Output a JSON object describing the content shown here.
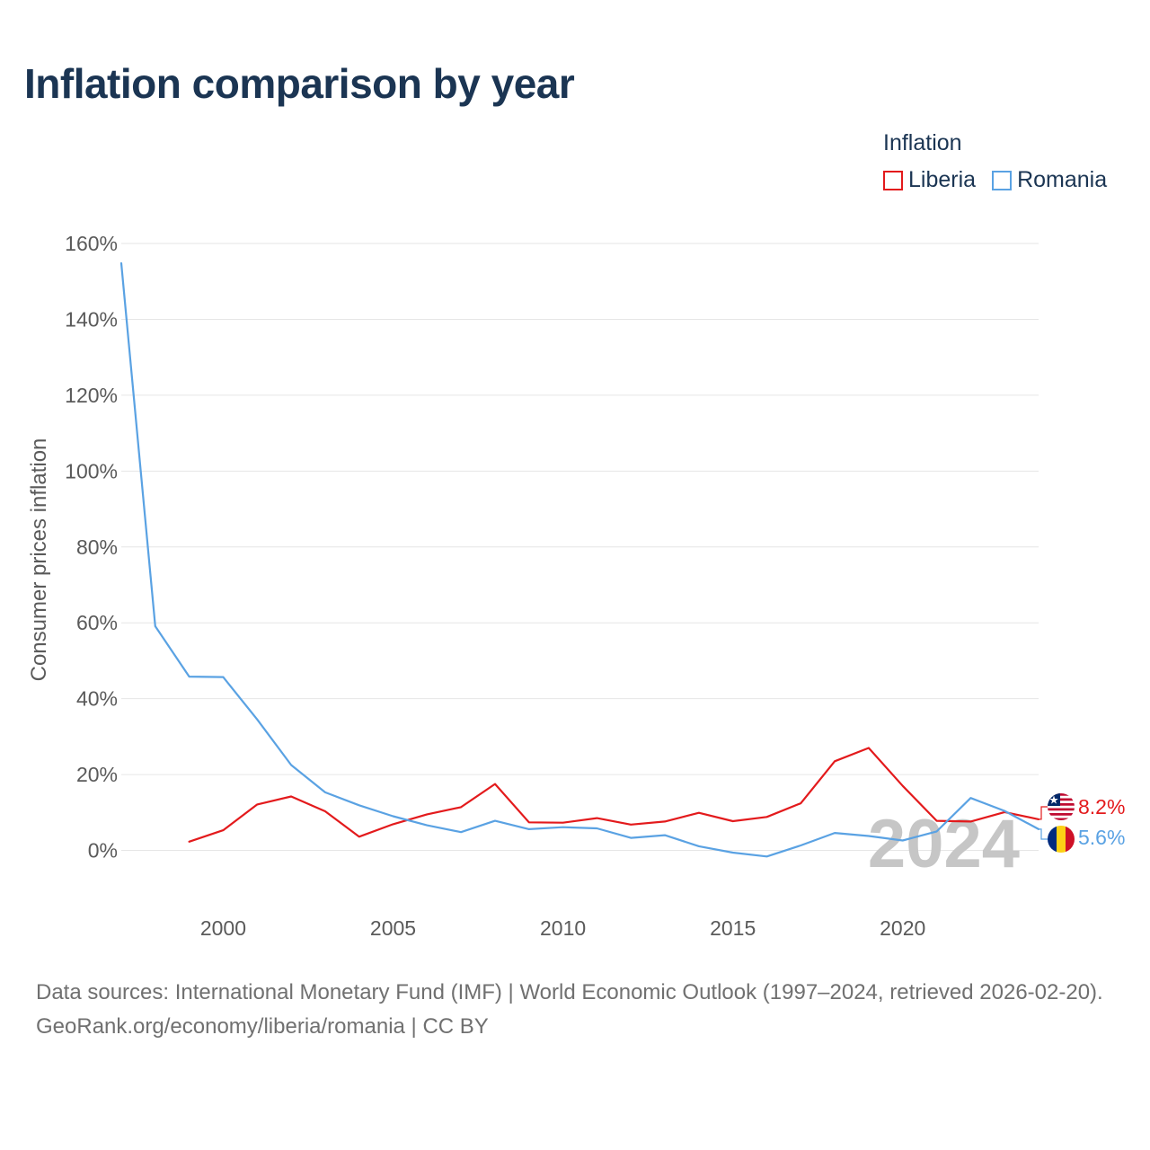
{
  "title": "Inflation comparison by year",
  "legend": {
    "title": "Inflation",
    "items": [
      {
        "label": "Liberia",
        "color": "#e31a1c"
      },
      {
        "label": "Romania",
        "color": "#5aa2e3"
      }
    ]
  },
  "footer": {
    "sources": "Data sources: International Monetary Fund (IMF) | World Economic Outlook (1997–2024, retrieved 2026-02-20).",
    "attribution": "GeoRank.org/economy/liberia/romania | CC BY"
  },
  "chart_data": {
    "type": "line",
    "title": "Inflation comparison by year",
    "xlabel": "",
    "ylabel": "Consumer prices inflation",
    "xlim": [
      1997,
      2024
    ],
    "ylim": [
      -10,
      160
    ],
    "yticks": [
      0,
      20,
      40,
      60,
      80,
      100,
      120,
      140,
      160
    ],
    "ytick_labels": [
      "0%",
      "20%",
      "40%",
      "60%",
      "80%",
      "100%",
      "120%",
      "140%",
      "160%"
    ],
    "xticks": [
      2000,
      2005,
      2010,
      2015,
      2020
    ],
    "xtick_labels": [
      "2000",
      "2005",
      "2010",
      "2015",
      "2020"
    ],
    "watermark_year": "2024",
    "legend_position": "top-right",
    "grid": true,
    "series": [
      {
        "name": "Liberia",
        "color": "#e31a1c",
        "end_label": "8.2%",
        "x": [
          1999,
          2000,
          2001,
          2002,
          2003,
          2004,
          2005,
          2006,
          2007,
          2008,
          2009,
          2010,
          2011,
          2012,
          2013,
          2014,
          2015,
          2016,
          2017,
          2018,
          2019,
          2020,
          2021,
          2022,
          2023,
          2024
        ],
        "values": [
          2.3,
          5.3,
          12.1,
          14.2,
          10.3,
          3.6,
          6.9,
          9.5,
          11.4,
          17.5,
          7.4,
          7.3,
          8.5,
          6.8,
          7.6,
          9.9,
          7.7,
          8.8,
          12.4,
          23.5,
          27.0,
          17.0,
          7.8,
          7.6,
          10.1,
          8.2
        ]
      },
      {
        "name": "Romania",
        "color": "#5aa2e3",
        "end_label": "5.6%",
        "x": [
          1997,
          1998,
          1999,
          2000,
          2001,
          2002,
          2003,
          2004,
          2005,
          2006,
          2007,
          2008,
          2009,
          2010,
          2011,
          2012,
          2013,
          2014,
          2015,
          2016,
          2017,
          2018,
          2019,
          2020,
          2021,
          2022,
          2023,
          2024
        ],
        "values": [
          154.8,
          59.1,
          45.8,
          45.7,
          34.5,
          22.5,
          15.3,
          11.9,
          9.0,
          6.6,
          4.8,
          7.8,
          5.6,
          6.1,
          5.8,
          3.3,
          4.0,
          1.1,
          -0.6,
          -1.6,
          1.3,
          4.6,
          3.8,
          2.6,
          5.0,
          13.8,
          10.4,
          5.6
        ]
      }
    ]
  }
}
